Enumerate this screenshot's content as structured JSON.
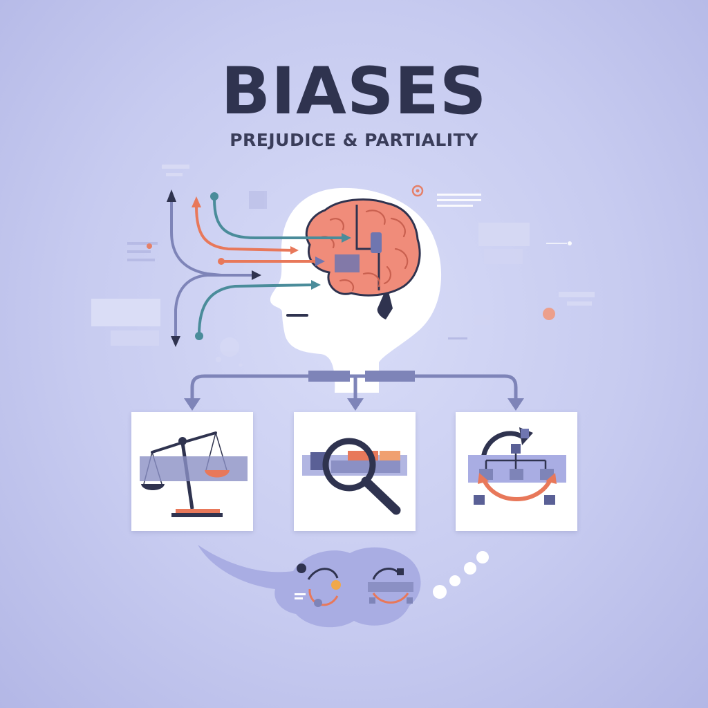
{
  "header": {
    "title": "BIASES",
    "subtitle": "PREJUDICE & PARTIALITY"
  },
  "colors": {
    "background": "#c9cdf1",
    "ink": "#2f334f",
    "accent_orange": "#e8785a",
    "accent_teal": "#4a8c9a",
    "accent_slate": "#7e84b8",
    "brain": "#f08c7a"
  },
  "icons": [
    "head-profile-icon",
    "brain-icon",
    "scale-icon",
    "magnifier-icon",
    "cycle-flow-icon"
  ]
}
